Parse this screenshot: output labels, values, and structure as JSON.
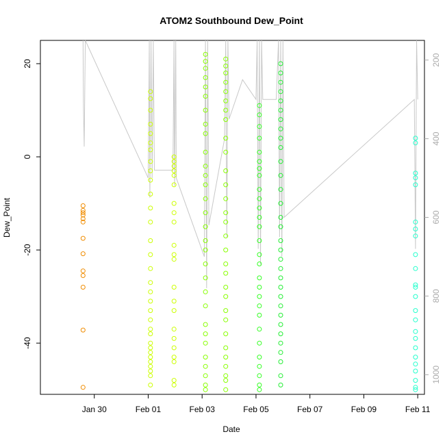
{
  "chart_data": {
    "type": "scatter",
    "title": "ATOM2 Southbound Dew_Point",
    "xlabel": "Date",
    "ylabel": "Dew_Point",
    "xlim": [
      "2025-01-28T00:00:00",
      "2025-02-11T06:00:00"
    ],
    "ylim": [
      -51,
      25
    ],
    "y_ticks": [
      20,
      0,
      -20,
      -40
    ],
    "x_ticks": [
      {
        "label": "Jan 30",
        "date": "2025-01-30"
      },
      {
        "label": "Feb 01",
        "date": "2025-02-01"
      },
      {
        "label": "Feb 03",
        "date": "2025-02-03"
      },
      {
        "label": "Feb 05",
        "date": "2025-02-05"
      },
      {
        "label": "Feb 07",
        "date": "2025-02-07"
      },
      {
        "label": "Feb 09",
        "date": "2025-02-09"
      },
      {
        "label": "Feb 11",
        "date": "2025-02-11"
      }
    ],
    "secondary_axis": {
      "position": "right",
      "lim": [
        1050,
        150
      ],
      "ticks": [
        200,
        400,
        600,
        800,
        1000
      ],
      "color": "#aaaaaa"
    },
    "secondary_line_color": "#c8c8c8",
    "secondary_line": [
      [
        "2025-01-29T14:00",
        150
      ],
      [
        "2025-01-29T14:20",
        320
      ],
      [
        "2025-01-29T15:00",
        420
      ],
      [
        "2025-01-29T16:00",
        150
      ],
      [
        "2025-02-01T00:00",
        500
      ],
      [
        "2025-02-01T01:00",
        150
      ],
      [
        "2025-02-01T01:30",
        550
      ],
      [
        "2025-02-01T02:30",
        150
      ],
      [
        "2025-02-01T03:30",
        500
      ],
      [
        "2025-02-01T04:30",
        150
      ],
      [
        "2025-02-01T05:30",
        480
      ],
      [
        "2025-02-01T22:00",
        480
      ],
      [
        "2025-02-01T23:00",
        150
      ],
      [
        "2025-02-01T23:30",
        520
      ],
      [
        "2025-02-02T00:30",
        150
      ],
      [
        "2025-02-02T01:00",
        500
      ],
      [
        "2025-02-03T02:00",
        700
      ],
      [
        "2025-02-03T03:00",
        150
      ],
      [
        "2025-02-03T04:00",
        780
      ],
      [
        "2025-02-03T05:00",
        150
      ],
      [
        "2025-02-03T06:00",
        620
      ],
      [
        "2025-02-03T20:00",
        400
      ],
      [
        "2025-02-03T21:00",
        150
      ],
      [
        "2025-02-03T22:00",
        650
      ],
      [
        "2025-02-03T23:00",
        150
      ],
      [
        "2025-02-04T00:00",
        350
      ],
      [
        "2025-02-04T12:00",
        250
      ],
      [
        "2025-02-05T00:00",
        300
      ],
      [
        "2025-02-05T01:00",
        150
      ],
      [
        "2025-02-05T02:00",
        680
      ],
      [
        "2025-02-05T03:00",
        150
      ],
      [
        "2025-02-05T04:00",
        720
      ],
      [
        "2025-02-05T05:00",
        150
      ],
      [
        "2025-02-05T06:00",
        300
      ],
      [
        "2025-02-05T18:00",
        300
      ],
      [
        "2025-02-05T20:00",
        150
      ],
      [
        "2025-02-05T21:00",
        650
      ],
      [
        "2025-02-05T22:00",
        150
      ],
      [
        "2025-02-05T23:00",
        700
      ],
      [
        "2025-02-06T00:00",
        150
      ],
      [
        "2025-02-06T01:00",
        600
      ],
      [
        "2025-02-10T21:00",
        300
      ],
      [
        "2025-02-10T22:00",
        680
      ],
      [
        "2025-02-10T23:00",
        150
      ],
      [
        "2025-02-11T00:00",
        300
      ]
    ],
    "series": [
      {
        "color": "#f08c00",
        "x": [
          "2025-01-29T14:00",
          "2025-01-29T14:00",
          "2025-01-29T14:00",
          "2025-01-29T14:00",
          "2025-01-29T14:00",
          "2025-01-29T14:00",
          "2025-01-29T14:00",
          "2025-01-29T14:00",
          "2025-01-29T14:00",
          "2025-01-29T14:00",
          "2025-01-29T14:00",
          "2025-01-29T14:00",
          "2025-01-29T14:00"
        ],
        "y": [
          -10.5,
          -11.5,
          -12.5,
          -13.3,
          -17.5,
          -20.8,
          -24.5,
          -25.5,
          -28.0,
          -37.2,
          -49.5,
          -12.0,
          -14.0
        ]
      },
      {
        "color": "#ccff00",
        "x": [
          "2025-02-01T02:00",
          "2025-02-01T02:00",
          "2025-02-01T02:00",
          "2025-02-01T02:00",
          "2025-02-01T02:00",
          "2025-02-01T02:00",
          "2025-02-01T02:00",
          "2025-02-01T02:00",
          "2025-02-01T02:00",
          "2025-02-01T02:00",
          "2025-02-01T02:00",
          "2025-02-01T02:00",
          "2025-02-01T02:00",
          "2025-02-01T02:00",
          "2025-02-01T02:00",
          "2025-02-01T02:00",
          "2025-02-01T02:00",
          "2025-02-01T02:00",
          "2025-02-01T02:00",
          "2025-02-01T02:00",
          "2025-02-01T02:00",
          "2025-02-01T02:00",
          "2025-02-01T02:00",
          "2025-02-01T02:00",
          "2025-02-01T02:00",
          "2025-02-01T02:00",
          "2025-02-01T02:00",
          "2025-02-01T02:00",
          "2025-02-01T02:00",
          "2025-02-01T02:00",
          "2025-02-01T02:00",
          "2025-02-01T02:00"
        ],
        "y": [
          14.0,
          12.5,
          10.0,
          7.0,
          5.0,
          3.0,
          1.5,
          -1.0,
          -3.0,
          -5.0,
          -8.0,
          -11.0,
          -14.0,
          -18.0,
          -21.0,
          -24.0,
          -27.0,
          -29.0,
          -31.0,
          -33.0,
          -35.0,
          -37.0,
          -38.0,
          -40.0,
          -41.0,
          -42.0,
          -43.0,
          -44.0,
          -45.0,
          -46.0,
          -47.0,
          -49.0
        ]
      },
      {
        "color": "#ccff00",
        "x": [
          "2025-02-01T23:00",
          "2025-02-01T23:00",
          "2025-02-01T23:00",
          "2025-02-01T23:00",
          "2025-02-01T23:00",
          "2025-02-01T23:00",
          "2025-02-01T23:00",
          "2025-02-01T23:00",
          "2025-02-01T23:00",
          "2025-02-01T23:00",
          "2025-02-01T23:00",
          "2025-02-01T23:00",
          "2025-02-01T23:00",
          "2025-02-01T23:00",
          "2025-02-01T23:00",
          "2025-02-01T23:00",
          "2025-02-01T23:00",
          "2025-02-01T23:00",
          "2025-02-01T23:00",
          "2025-02-01T23:00",
          "2025-02-01T23:00",
          "2025-02-01T23:00"
        ],
        "y": [
          0.0,
          -1.0,
          -2.0,
          -3.0,
          -4.0,
          -6.0,
          -10.0,
          -12.0,
          -14.0,
          -19.0,
          -21.0,
          -22.0,
          -28.0,
          -31.0,
          -33.0,
          -37.0,
          -39.0,
          -41.0,
          -43.0,
          -44.0,
          -48.0,
          -49.0
        ]
      },
      {
        "color": "#88ff00",
        "x": [
          "2025-02-03T03:00",
          "2025-02-03T03:00",
          "2025-02-03T03:00",
          "2025-02-03T03:00",
          "2025-02-03T03:00",
          "2025-02-03T03:00",
          "2025-02-03T03:00",
          "2025-02-03T03:00",
          "2025-02-03T03:00",
          "2025-02-03T03:00",
          "2025-02-03T03:00",
          "2025-02-03T03:00",
          "2025-02-03T03:00",
          "2025-02-03T03:00",
          "2025-02-03T03:00",
          "2025-02-03T03:00",
          "2025-02-03T03:00",
          "2025-02-03T03:00",
          "2025-02-03T03:00",
          "2025-02-03T03:00",
          "2025-02-03T03:00",
          "2025-02-03T03:00",
          "2025-02-03T03:00",
          "2025-02-03T03:00",
          "2025-02-03T03:00",
          "2025-02-03T03:00",
          "2025-02-03T03:00",
          "2025-02-03T03:00",
          "2025-02-03T03:00",
          "2025-02-03T03:00"
        ],
        "y": [
          22.0,
          20.5,
          19.0,
          17.0,
          15.0,
          13.0,
          10.0,
          7.0,
          5.0,
          1.0,
          -2.0,
          -4.0,
          -6.0,
          -9.0,
          -12.0,
          -15.0,
          -18.0,
          -20.0,
          -23.0,
          -26.0,
          -29.0,
          -32.0,
          -36.0,
          -38.0,
          -40.0,
          -43.0,
          -45.0,
          -47.0,
          -49.0,
          -50.0
        ]
      },
      {
        "color": "#88ff00",
        "x": [
          "2025-02-03T21:00",
          "2025-02-03T21:00",
          "2025-02-03T21:00",
          "2025-02-03T21:00",
          "2025-02-03T21:00",
          "2025-02-03T21:00",
          "2025-02-03T21:00",
          "2025-02-03T21:00",
          "2025-02-03T21:00",
          "2025-02-03T21:00",
          "2025-02-03T21:00",
          "2025-02-03T21:00",
          "2025-02-03T21:00",
          "2025-02-03T21:00",
          "2025-02-03T21:00",
          "2025-02-03T21:00",
          "2025-02-03T21:00",
          "2025-02-03T21:00",
          "2025-02-03T21:00",
          "2025-02-03T21:00",
          "2025-02-03T21:00",
          "2025-02-03T21:00",
          "2025-02-03T21:00",
          "2025-02-03T21:00",
          "2025-02-03T21:00",
          "2025-02-03T21:00",
          "2025-02-03T21:00",
          "2025-02-03T21:00",
          "2025-02-03T21:00",
          "2025-02-03T21:00"
        ],
        "y": [
          21.0,
          19.5,
          18.0,
          16.0,
          14.0,
          12.0,
          10.0,
          8.0,
          4.0,
          1.0,
          -3.0,
          -6.0,
          -9.0,
          -12.0,
          -14.0,
          -17.0,
          -20.0,
          -23.0,
          -25.0,
          -28.0,
          -30.0,
          -33.0,
          -35.0,
          -38.0,
          -41.0,
          -43.0,
          -45.0,
          -47.0,
          -48.0,
          -50.0
        ]
      },
      {
        "color": "#33ff22",
        "x": [
          "2025-02-05T03:00",
          "2025-02-05T03:00",
          "2025-02-05T03:00",
          "2025-02-05T03:00",
          "2025-02-05T03:00",
          "2025-02-05T03:00",
          "2025-02-05T03:00",
          "2025-02-05T03:00",
          "2025-02-05T03:00",
          "2025-02-05T03:00",
          "2025-02-05T03:00",
          "2025-02-05T03:00",
          "2025-02-05T03:00",
          "2025-02-05T03:00",
          "2025-02-05T03:00",
          "2025-02-05T03:00",
          "2025-02-05T03:00",
          "2025-02-05T03:00",
          "2025-02-05T03:00",
          "2025-02-05T03:00",
          "2025-02-05T03:00",
          "2025-02-05T03:00",
          "2025-02-05T03:00",
          "2025-02-05T03:00",
          "2025-02-05T03:00",
          "2025-02-05T03:00",
          "2025-02-05T03:00",
          "2025-02-05T03:00"
        ],
        "y": [
          11.0,
          9.0,
          6.5,
          4.0,
          1.0,
          -1.0,
          -2.5,
          -4.0,
          -7.0,
          -9.0,
          -11.0,
          -13.0,
          -15.0,
          -18.0,
          -21.0,
          -23.0,
          -26.0,
          -28.0,
          -30.0,
          -32.0,
          -34.0,
          -37.0,
          -40.0,
          -43.0,
          -45.0,
          -47.0,
          -49.0,
          -50.0
        ]
      },
      {
        "color": "#22ee33",
        "x": [
          "2025-02-05T22:00",
          "2025-02-05T22:00",
          "2025-02-05T22:00",
          "2025-02-05T22:00",
          "2025-02-05T22:00",
          "2025-02-05T22:00",
          "2025-02-05T22:00",
          "2025-02-05T22:00",
          "2025-02-05T22:00",
          "2025-02-05T22:00",
          "2025-02-05T22:00",
          "2025-02-05T22:00",
          "2025-02-05T22:00",
          "2025-02-05T22:00",
          "2025-02-05T22:00",
          "2025-02-05T22:00",
          "2025-02-05T22:00",
          "2025-02-05T22:00",
          "2025-02-05T22:00",
          "2025-02-05T22:00",
          "2025-02-05T22:00",
          "2025-02-05T22:00",
          "2025-02-05T22:00",
          "2025-02-05T22:00",
          "2025-02-05T22:00",
          "2025-02-05T22:00",
          "2025-02-05T22:00",
          "2025-02-05T22:00",
          "2025-02-05T22:00",
          "2025-02-05T22:00",
          "2025-02-05T22:00",
          "2025-02-05T22:00"
        ],
        "y": [
          20.0,
          18.0,
          16.0,
          14.0,
          12.0,
          10.0,
          8.0,
          6.0,
          4.0,
          2.0,
          -1.0,
          -4.0,
          -7.0,
          -10.0,
          -13.0,
          -15.0,
          -18.0,
          -20.0,
          -22.0,
          -24.0,
          -26.0,
          -28.0,
          -30.0,
          -32.0,
          -34.0,
          -36.0,
          -38.0,
          -40.0,
          -42.0,
          -44.0,
          -47.0,
          -49.0
        ]
      },
      {
        "color": "#22ffcc",
        "x": [
          "2025-02-10T22:00",
          "2025-02-10T22:00",
          "2025-02-10T22:00",
          "2025-02-10T22:00",
          "2025-02-10T22:00",
          "2025-02-10T22:00",
          "2025-02-10T22:00",
          "2025-02-10T22:00",
          "2025-02-10T22:00",
          "2025-02-10T22:00",
          "2025-02-10T22:00",
          "2025-02-10T22:00",
          "2025-02-10T22:00",
          "2025-02-10T22:00",
          "2025-02-10T22:00",
          "2025-02-10T22:00",
          "2025-02-10T22:00",
          "2025-02-10T22:00",
          "2025-02-10T22:00",
          "2025-02-10T22:00",
          "2025-02-10T22:00",
          "2025-02-10T22:00",
          "2025-02-10T22:00",
          "2025-02-10T22:00"
        ],
        "y": [
          4.0,
          3.0,
          -3.5,
          -4.5,
          -6.0,
          -14.0,
          -15.5,
          -17.0,
          -21.0,
          -24.0,
          -27.5,
          -30.0,
          -33.0,
          -35.0,
          -37.5,
          -39.0,
          -41.0,
          -43.0,
          -44.5,
          -46.0,
          -48.0,
          -49.5,
          -50.0,
          -28.0
        ]
      }
    ]
  }
}
